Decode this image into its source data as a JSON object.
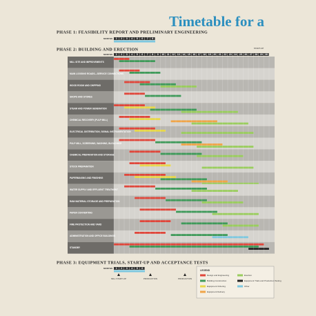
{
  "title": "Timetable for a",
  "phase1": {
    "heading": "PHASE 1: FEASIBILITY REPORT AND PRELIMINARY ENGINEERING",
    "months_label": "MONTHS",
    "months": [
      1,
      2,
      3,
      4,
      5,
      6,
      7,
      8
    ]
  },
  "phase2": {
    "heading": "PHASE 2: BUILDING AND ERECTION",
    "months_label": "MONTHS",
    "months": [
      1,
      2,
      3,
      4,
      5,
      6,
      7,
      8,
      9,
      10,
      11,
      12,
      13,
      14,
      15,
      16,
      17,
      18,
      19,
      20,
      21,
      22,
      23,
      24,
      25,
      26,
      27,
      28,
      29,
      30
    ],
    "start_label": "START-UP",
    "rows": [
      {
        "label": "MILL SITE AND IMPROVEMENTS",
        "bars": [
          {
            "kind": "design",
            "start": 1,
            "end": 3
          },
          {
            "kind": "building",
            "start": 2,
            "end": 8
          }
        ]
      },
      {
        "label": "MAIN LOGGING ROADS—SERVICE CONNECTIONS",
        "bars": [
          {
            "kind": "design",
            "start": 2,
            "end": 5
          },
          {
            "kind": "building",
            "start": 4,
            "end": 9
          }
        ]
      },
      {
        "label": "WOOD ROOM AND CHIPPING",
        "bars": [
          {
            "kind": "design",
            "start": 3,
            "end": 7
          },
          {
            "kind": "building",
            "start": 6,
            "end": 12
          },
          {
            "kind": "erection",
            "start": 10,
            "end": 16
          }
        ]
      },
      {
        "label": "SHOPS AND STORES",
        "bars": [
          {
            "kind": "design",
            "start": 3,
            "end": 6
          },
          {
            "kind": "building",
            "start": 7,
            "end": 13
          }
        ]
      },
      {
        "label": "STEAM AND POWER GENERATION",
        "bars": [
          {
            "kind": "design",
            "start": 1,
            "end": 6
          },
          {
            "kind": "ordering",
            "start": 3,
            "end": 8
          },
          {
            "kind": "building",
            "start": 8,
            "end": 16
          },
          {
            "kind": "erection",
            "start": 14,
            "end": 24
          }
        ]
      },
      {
        "label": "CHEMICAL RECOVERY (PULP MILL)",
        "bars": [
          {
            "kind": "design",
            "start": 2,
            "end": 7
          },
          {
            "kind": "ordering",
            "start": 4,
            "end": 9
          },
          {
            "kind": "delivery",
            "start": 12,
            "end": 20
          },
          {
            "kind": "erection",
            "start": 16,
            "end": 26
          }
        ]
      },
      {
        "label": "ELECTRICAL DISTRIBUTION, SIGNAL INSTRUMENTATION",
        "bars": [
          {
            "kind": "design",
            "start": 2,
            "end": 8
          },
          {
            "kind": "ordering",
            "start": 5,
            "end": 10
          },
          {
            "kind": "erection",
            "start": 14,
            "end": 27
          }
        ]
      },
      {
        "label": "PULP MILL, SCREENING, WASHING, BLEACHING",
        "bars": [
          {
            "kind": "design",
            "start": 2,
            "end": 8
          },
          {
            "kind": "building",
            "start": 9,
            "end": 17
          },
          {
            "kind": "delivery",
            "start": 14,
            "end": 21
          },
          {
            "kind": "erection",
            "start": 17,
            "end": 27
          }
        ]
      },
      {
        "label": "CHEMICAL PREPARATION AND STORAGE",
        "bars": [
          {
            "kind": "design",
            "start": 4,
            "end": 9
          },
          {
            "kind": "building",
            "start": 10,
            "end": 17
          },
          {
            "kind": "erection",
            "start": 17,
            "end": 25
          }
        ]
      },
      {
        "label": "STOCK PREPARATION",
        "bars": [
          {
            "kind": "design",
            "start": 4,
            "end": 10
          },
          {
            "kind": "ordering",
            "start": 6,
            "end": 11
          },
          {
            "kind": "erection",
            "start": 18,
            "end": 27
          }
        ]
      },
      {
        "label": "PAPERMAKING AND FINISHING",
        "bars": [
          {
            "kind": "design",
            "start": 3,
            "end": 10
          },
          {
            "kind": "ordering",
            "start": 5,
            "end": 12
          },
          {
            "kind": "building",
            "start": 10,
            "end": 18
          },
          {
            "kind": "delivery",
            "start": 16,
            "end": 22
          },
          {
            "kind": "erection",
            "start": 18,
            "end": 28
          }
        ]
      },
      {
        "label": "WATER SUPPLY AND EFFLUENT TREATMENT",
        "bars": [
          {
            "kind": "design",
            "start": 3,
            "end": 8
          },
          {
            "kind": "building",
            "start": 9,
            "end": 18
          },
          {
            "kind": "erection",
            "start": 16,
            "end": 24
          }
        ]
      },
      {
        "label": "RAW MATERIAL STORAGE AND PREPARATION",
        "bars": [
          {
            "kind": "design",
            "start": 5,
            "end": 10
          },
          {
            "kind": "building",
            "start": 11,
            "end": 18
          },
          {
            "kind": "erection",
            "start": 18,
            "end": 25
          }
        ]
      },
      {
        "label": "PAPER CONVERTING",
        "bars": [
          {
            "kind": "design",
            "start": 6,
            "end": 12
          },
          {
            "kind": "building",
            "start": 13,
            "end": 20
          },
          {
            "kind": "erection",
            "start": 20,
            "end": 28
          }
        ]
      },
      {
        "label": "FIRE PROTECTION AND YARD",
        "bars": [
          {
            "kind": "design",
            "start": 6,
            "end": 11
          },
          {
            "kind": "building",
            "start": 14,
            "end": 22
          },
          {
            "kind": "erection",
            "start": 22,
            "end": 28
          }
        ]
      },
      {
        "label": "ADMINISTRATION AND OFFICE BUILDINGS",
        "bars": [
          {
            "kind": "design",
            "start": 5,
            "end": 10
          },
          {
            "kind": "building",
            "start": 12,
            "end": 22
          },
          {
            "kind": "other",
            "start": 20,
            "end": 26
          }
        ]
      },
      {
        "label": "STANDBY",
        "bars": [
          {
            "kind": "design",
            "start": 1,
            "end": 29
          },
          {
            "kind": "building",
            "start": 4,
            "end": 28
          },
          {
            "kind": "trials",
            "start": 27,
            "end": 30
          }
        ]
      }
    ]
  },
  "phase3": {
    "heading": "PHASE 3: EQUIPMENT TRIALS, START-UP AND ACCEPTANCE TESTS",
    "months_label": "MONTHS",
    "months": [
      1,
      2,
      3,
      4,
      5,
      6
    ],
    "markers": [
      "MILL START-UP",
      "PRODUCTION",
      "PRODUCTION"
    ]
  },
  "legend": {
    "title": "LEGEND",
    "items": [
      {
        "key": "design",
        "label": "Design and Engineering",
        "color": "#e0463a"
      },
      {
        "key": "building",
        "label": "Building Construction",
        "color": "#3f9a5a"
      },
      {
        "key": "ordering",
        "label": "Equipment Ordering",
        "color": "#e8d84a"
      },
      {
        "key": "delivery",
        "label": "Equipment Delivery",
        "color": "#f0a548"
      },
      {
        "key": "erection",
        "label": "Erection",
        "color": "#9acd5e"
      },
      {
        "key": "trials",
        "label": "Equipment Trials and Production Testing",
        "color": "#222222"
      },
      {
        "key": "other",
        "label": "Other",
        "color": "#7ec8e0"
      }
    ]
  }
}
